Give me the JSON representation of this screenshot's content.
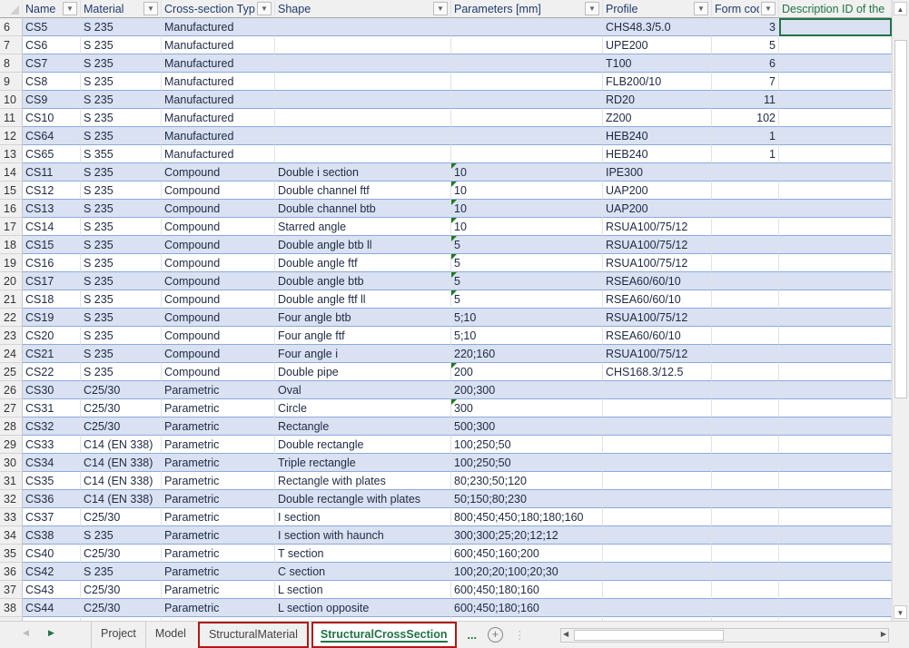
{
  "columns": [
    {
      "label": "Name",
      "filter": true
    },
    {
      "label": "Material",
      "filter": true
    },
    {
      "label": "Cross-section Type",
      "filter": true
    },
    {
      "label": "Shape",
      "filter": true
    },
    {
      "label": "Parameters [mm]",
      "filter": true
    },
    {
      "label": "Profile",
      "filter": true
    },
    {
      "label": "Form code",
      "filter": true
    },
    {
      "label": "Description ID of the",
      "filter": false
    }
  ],
  "rows": [
    {
      "n": "6",
      "cells": [
        "CS5",
        "S 235",
        "Manufactured",
        "",
        "",
        "CHS48.3/5.0",
        "3",
        ""
      ],
      "selected_col": 7
    },
    {
      "n": "7",
      "cells": [
        "CS6",
        "S 235",
        "Manufactured",
        "",
        "",
        "UPE200",
        "5",
        ""
      ]
    },
    {
      "n": "8",
      "cells": [
        "CS7",
        "S 235",
        "Manufactured",
        "",
        "",
        "T100",
        "6",
        ""
      ]
    },
    {
      "n": "9",
      "cells": [
        "CS8",
        "S 235",
        "Manufactured",
        "",
        "",
        "FLB200/10",
        "7",
        ""
      ]
    },
    {
      "n": "10",
      "cells": [
        "CS9",
        "S 235",
        "Manufactured",
        "",
        "",
        "RD20",
        "11",
        ""
      ]
    },
    {
      "n": "11",
      "cells": [
        "CS10",
        "S 235",
        "Manufactured",
        "",
        "",
        "Z200",
        "102",
        ""
      ]
    },
    {
      "n": "12",
      "cells": [
        "CS64",
        "S 235",
        "Manufactured",
        "",
        "",
        "HEB240",
        "1",
        ""
      ]
    },
    {
      "n": "13",
      "cells": [
        "CS65",
        "S 355",
        "Manufactured",
        "",
        "",
        "HEB240",
        "1",
        ""
      ]
    },
    {
      "n": "14",
      "cells": [
        "CS11",
        "S 235",
        "Compound",
        "Double i section",
        "10",
        "IPE300",
        "",
        ""
      ],
      "flag": true
    },
    {
      "n": "15",
      "cells": [
        "CS12",
        "S 235",
        "Compound",
        "Double channel ftf",
        "10",
        "UAP200",
        "",
        ""
      ],
      "flag": true
    },
    {
      "n": "16",
      "cells": [
        "CS13",
        "S 235",
        "Compound",
        "Double channel btb",
        "10",
        "UAP200",
        "",
        ""
      ],
      "flag": true
    },
    {
      "n": "17",
      "cells": [
        "CS14",
        "S 235",
        "Compound",
        "Starred angle",
        "10",
        "RSUA100/75/12",
        "",
        ""
      ],
      "flag": true
    },
    {
      "n": "18",
      "cells": [
        "CS15",
        "S 235",
        "Compound",
        "Double angle btb ll",
        "5",
        "RSUA100/75/12",
        "",
        ""
      ],
      "flag": true
    },
    {
      "n": "19",
      "cells": [
        "CS16",
        "S 235",
        "Compound",
        "Double angle ftf",
        "5",
        "RSUA100/75/12",
        "",
        ""
      ],
      "flag": true
    },
    {
      "n": "20",
      "cells": [
        "CS17",
        "S 235",
        "Compound",
        "Double angle btb",
        "5",
        "RSEA60/60/10",
        "",
        ""
      ],
      "flag": true
    },
    {
      "n": "21",
      "cells": [
        "CS18",
        "S 235",
        "Compound",
        "Double angle ftf ll",
        "5",
        "RSEA60/60/10",
        "",
        ""
      ],
      "flag": true
    },
    {
      "n": "22",
      "cells": [
        "CS19",
        "S 235",
        "Compound",
        "Four angle btb",
        "5;10",
        "RSUA100/75/12",
        "",
        ""
      ]
    },
    {
      "n": "23",
      "cells": [
        "CS20",
        "S 235",
        "Compound",
        "Four angle ftf",
        "5;10",
        "RSEA60/60/10",
        "",
        ""
      ]
    },
    {
      "n": "24",
      "cells": [
        "CS21",
        "S 235",
        "Compound",
        "Four angle i",
        "220;160",
        "RSUA100/75/12",
        "",
        ""
      ]
    },
    {
      "n": "25",
      "cells": [
        "CS22",
        "S 235",
        "Compound",
        "Double pipe",
        "200",
        "CHS168.3/12.5",
        "",
        ""
      ],
      "flag": true
    },
    {
      "n": "26",
      "cells": [
        "CS30",
        "C25/30",
        "Parametric",
        "Oval",
        "200;300",
        "",
        "",
        ""
      ]
    },
    {
      "n": "27",
      "cells": [
        "CS31",
        "C25/30",
        "Parametric",
        "Circle",
        "300",
        "",
        "",
        ""
      ],
      "flag": true
    },
    {
      "n": "28",
      "cells": [
        "CS32",
        "C25/30",
        "Parametric",
        "Rectangle",
        "500;300",
        "",
        "",
        ""
      ]
    },
    {
      "n": "29",
      "cells": [
        "CS33",
        "C14 (EN 338)",
        "Parametric",
        "Double rectangle",
        "100;250;50",
        "",
        "",
        ""
      ]
    },
    {
      "n": "30",
      "cells": [
        "CS34",
        "C14 (EN 338)",
        "Parametric",
        "Triple rectangle",
        "100;250;50",
        "",
        "",
        ""
      ]
    },
    {
      "n": "31",
      "cells": [
        "CS35",
        "C14 (EN 338)",
        "Parametric",
        "Rectangle with plates",
        "80;230;50;120",
        "",
        "",
        ""
      ]
    },
    {
      "n": "32",
      "cells": [
        "CS36",
        "C14 (EN 338)",
        "Parametric",
        "Double rectangle with plates",
        "50;150;80;230",
        "",
        "",
        ""
      ]
    },
    {
      "n": "33",
      "cells": [
        "CS37",
        "C25/30",
        "Parametric",
        "I section",
        "800;450;450;180;180;160",
        "",
        "",
        ""
      ]
    },
    {
      "n": "34",
      "cells": [
        "CS38",
        "S 235",
        "Parametric",
        "I section with haunch",
        "300;300;25;20;12;12",
        "",
        "",
        ""
      ]
    },
    {
      "n": "35",
      "cells": [
        "CS40",
        "C25/30",
        "Parametric",
        "T section",
        "600;450;160;200",
        "",
        "",
        ""
      ]
    },
    {
      "n": "36",
      "cells": [
        "CS42",
        "S 235",
        "Parametric",
        "C section",
        "100;20;20;100;20;30",
        "",
        "",
        ""
      ]
    },
    {
      "n": "37",
      "cells": [
        "CS43",
        "C25/30",
        "Parametric",
        "L section",
        "600;450;180;160",
        "",
        "",
        ""
      ]
    },
    {
      "n": "38",
      "cells": [
        "CS44",
        "C25/30",
        "Parametric",
        "L section opposite",
        "600;450;180;160",
        "",
        "",
        ""
      ]
    }
  ],
  "sheet_tabs": {
    "more_left": "...",
    "items": [
      {
        "label": "Project",
        "active": false,
        "highlighted": false
      },
      {
        "label": "Model",
        "active": false,
        "highlighted": false
      },
      {
        "label": "StructuralMaterial",
        "active": false,
        "highlighted": true
      },
      {
        "label": "StructuralCrossSection",
        "active": true,
        "highlighted": true
      }
    ],
    "more": "...",
    "add": "+"
  },
  "colors": {
    "band": "#d9e1f2",
    "accent": "#217346",
    "highlight": "#b01818"
  }
}
